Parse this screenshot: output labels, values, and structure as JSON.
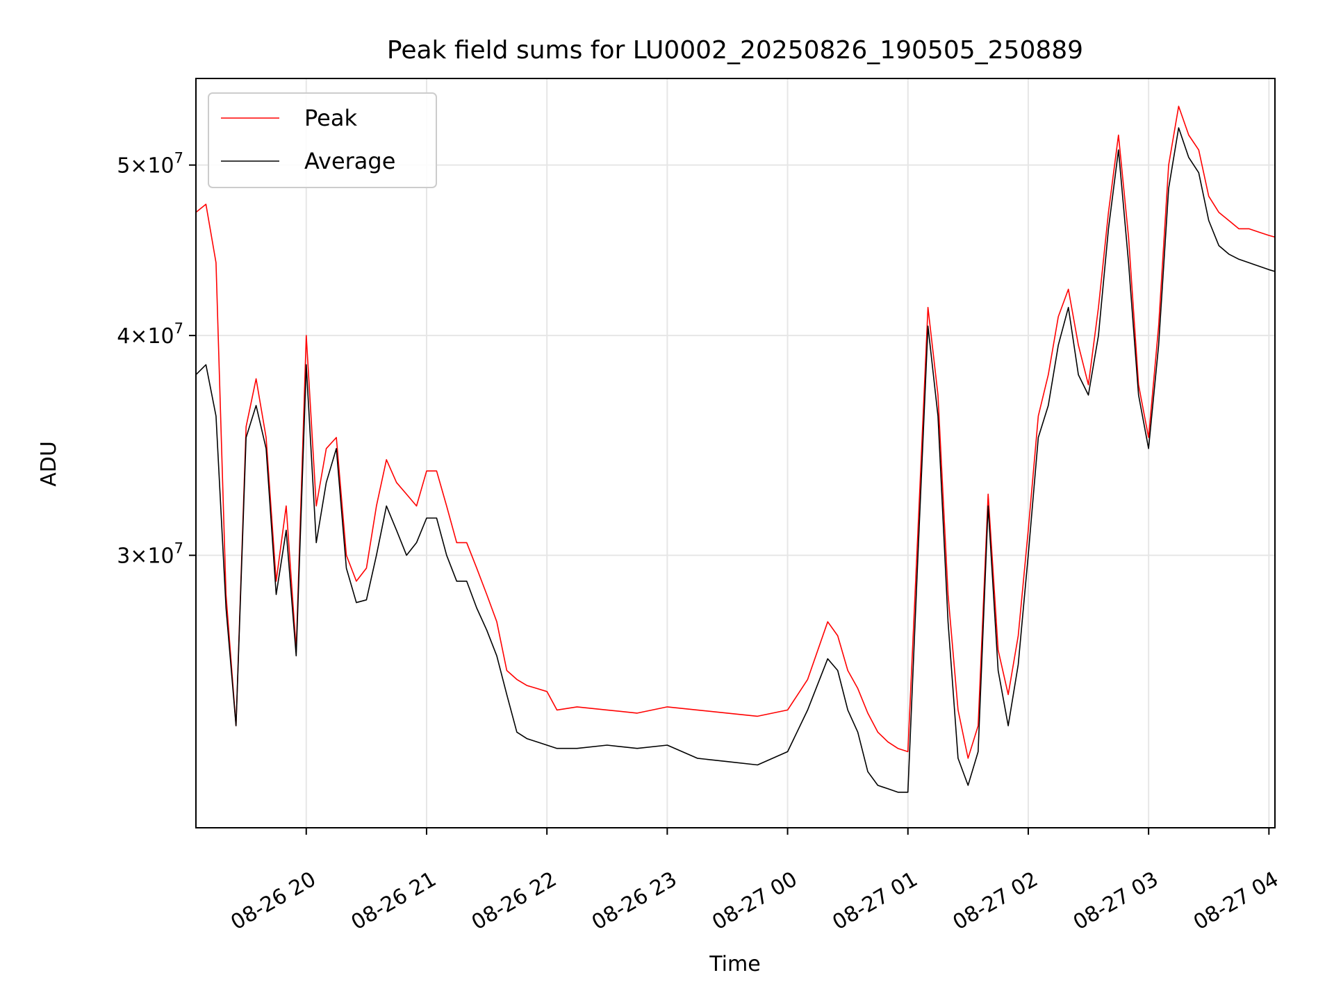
{
  "chart_data": {
    "type": "line",
    "title": "Peak field sums for LU0002_20250826_190505_250889",
    "xlabel": "Time",
    "ylabel": "ADU",
    "yscale": "log",
    "ylim": [
      21000000,
      56000000
    ],
    "xlim": [
      "2025-08-26 19:05",
      "2025-08-27 04:03"
    ],
    "grid": true,
    "legend_position": "top-left",
    "x_ticks": [
      {
        "t": "2025-08-26 20:00",
        "label": "08-26 20"
      },
      {
        "t": "2025-08-26 21:00",
        "label": "08-26 21"
      },
      {
        "t": "2025-08-26 22:00",
        "label": "08-26 22"
      },
      {
        "t": "2025-08-26 23:00",
        "label": "08-26 23"
      },
      {
        "t": "2025-08-27 00:00",
        "label": "08-27 00"
      },
      {
        "t": "2025-08-27 01:00",
        "label": "08-27 01"
      },
      {
        "t": "2025-08-27 02:00",
        "label": "08-27 02"
      },
      {
        "t": "2025-08-27 03:00",
        "label": "08-27 03"
      },
      {
        "t": "2025-08-27 04:00",
        "label": "08-27 04"
      }
    ],
    "y_ticks": [
      {
        "value": 30000000,
        "mantissa": "3",
        "exponent": "7"
      },
      {
        "value": 40000000,
        "mantissa": "4",
        "exponent": "7"
      },
      {
        "value": 50000000,
        "mantissa": "5",
        "exponent": "7"
      }
    ],
    "series": [
      {
        "name": "Peak",
        "color": "#ff0000",
        "x": [
          "2025-08-26 19:05",
          "2025-08-26 19:10",
          "2025-08-26 19:15",
          "2025-08-26 19:20",
          "2025-08-26 19:25",
          "2025-08-26 19:30",
          "2025-08-26 19:35",
          "2025-08-26 19:40",
          "2025-08-26 19:45",
          "2025-08-26 19:50",
          "2025-08-26 19:55",
          "2025-08-26 20:00",
          "2025-08-26 20:05",
          "2025-08-26 20:10",
          "2025-08-26 20:15",
          "2025-08-26 20:20",
          "2025-08-26 20:25",
          "2025-08-26 20:30",
          "2025-08-26 20:35",
          "2025-08-26 20:40",
          "2025-08-26 20:45",
          "2025-08-26 20:50",
          "2025-08-26 20:55",
          "2025-08-26 21:00",
          "2025-08-26 21:05",
          "2025-08-26 21:10",
          "2025-08-26 21:15",
          "2025-08-26 21:20",
          "2025-08-26 21:25",
          "2025-08-26 21:30",
          "2025-08-26 21:35",
          "2025-08-26 21:40",
          "2025-08-26 21:45",
          "2025-08-26 21:50",
          "2025-08-26 21:55",
          "2025-08-26 22:00",
          "2025-08-26 22:05",
          "2025-08-26 22:15",
          "2025-08-26 22:30",
          "2025-08-26 22:45",
          "2025-08-26 23:00",
          "2025-08-26 23:15",
          "2025-08-26 23:30",
          "2025-08-26 23:45",
          "2025-08-27 00:00",
          "2025-08-27 00:10",
          "2025-08-27 00:20",
          "2025-08-27 00:25",
          "2025-08-27 00:30",
          "2025-08-27 00:35",
          "2025-08-27 00:40",
          "2025-08-27 00:45",
          "2025-08-27 00:50",
          "2025-08-27 00:55",
          "2025-08-27 01:00",
          "2025-08-27 01:05",
          "2025-08-27 01:10",
          "2025-08-27 01:15",
          "2025-08-27 01:20",
          "2025-08-27 01:25",
          "2025-08-27 01:30",
          "2025-08-27 01:35",
          "2025-08-27 01:40",
          "2025-08-27 01:45",
          "2025-08-27 01:50",
          "2025-08-27 01:55",
          "2025-08-27 02:00",
          "2025-08-27 02:05",
          "2025-08-27 02:10",
          "2025-08-27 02:15",
          "2025-08-27 02:20",
          "2025-08-27 02:25",
          "2025-08-27 02:30",
          "2025-08-27 02:35",
          "2025-08-27 02:40",
          "2025-08-27 02:45",
          "2025-08-27 02:50",
          "2025-08-27 02:55",
          "2025-08-27 03:00",
          "2025-08-27 03:05",
          "2025-08-27 03:10",
          "2025-08-27 03:15",
          "2025-08-27 03:20",
          "2025-08-27 03:25",
          "2025-08-27 03:30",
          "2025-08-27 03:35",
          "2025-08-27 03:40",
          "2025-08-27 03:45",
          "2025-08-27 03:50",
          "2025-08-27 03:55",
          "2025-08-27 04:00",
          "2025-08-27 04:03"
        ],
        "values": [
          47000000,
          47500000,
          44000000,
          28500000,
          24000000,
          35500000,
          37800000,
          35000000,
          29000000,
          32000000,
          26500000,
          40000000,
          32000000,
          34500000,
          35000000,
          30000000,
          29000000,
          29500000,
          32000000,
          34000000,
          33000000,
          32500000,
          32000000,
          33500000,
          33500000,
          32000000,
          30500000,
          30500000,
          29500000,
          28500000,
          27500000,
          25800000,
          25500000,
          25300000,
          25200000,
          25100000,
          24500000,
          24600000,
          24500000,
          24400000,
          24600000,
          24500000,
          24400000,
          24300000,
          24500000,
          25500000,
          27500000,
          27000000,
          25800000,
          25200000,
          24400000,
          23800000,
          23500000,
          23300000,
          23200000,
          31000000,
          41500000,
          37000000,
          28500000,
          24500000,
          23000000,
          24000000,
          32500000,
          26500000,
          25000000,
          27000000,
          31000000,
          36000000,
          38000000,
          41000000,
          42500000,
          39500000,
          37500000,
          41500000,
          47000000,
          52000000,
          45500000,
          37500000,
          35000000,
          40500000,
          50000000,
          54000000,
          52000000,
          51000000,
          48000000,
          47000000,
          46500000,
          46000000,
          46000000,
          45800000,
          45600000,
          45500000
        ]
      },
      {
        "name": "Average",
        "color": "#000000",
        "x": [
          "2025-08-26 19:05",
          "2025-08-26 19:10",
          "2025-08-26 19:15",
          "2025-08-26 19:20",
          "2025-08-26 19:25",
          "2025-08-26 19:30",
          "2025-08-26 19:35",
          "2025-08-26 19:40",
          "2025-08-26 19:45",
          "2025-08-26 19:50",
          "2025-08-26 19:55",
          "2025-08-26 20:00",
          "2025-08-26 20:05",
          "2025-08-26 20:10",
          "2025-08-26 20:15",
          "2025-08-26 20:20",
          "2025-08-26 20:25",
          "2025-08-26 20:30",
          "2025-08-26 20:35",
          "2025-08-26 20:40",
          "2025-08-26 20:45",
          "2025-08-26 20:50",
          "2025-08-26 20:55",
          "2025-08-26 21:00",
          "2025-08-26 21:05",
          "2025-08-26 21:10",
          "2025-08-26 21:15",
          "2025-08-26 21:20",
          "2025-08-26 21:25",
          "2025-08-26 21:30",
          "2025-08-26 21:35",
          "2025-08-26 21:40",
          "2025-08-26 21:45",
          "2025-08-26 21:50",
          "2025-08-26 21:55",
          "2025-08-26 22:00",
          "2025-08-26 22:05",
          "2025-08-26 22:15",
          "2025-08-26 22:30",
          "2025-08-26 22:45",
          "2025-08-26 23:00",
          "2025-08-26 23:15",
          "2025-08-26 23:30",
          "2025-08-26 23:45",
          "2025-08-27 00:00",
          "2025-08-27 00:10",
          "2025-08-27 00:20",
          "2025-08-27 00:25",
          "2025-08-27 00:30",
          "2025-08-27 00:35",
          "2025-08-27 00:40",
          "2025-08-27 00:45",
          "2025-08-27 00:50",
          "2025-08-27 00:55",
          "2025-08-27 01:00",
          "2025-08-27 01:05",
          "2025-08-27 01:10",
          "2025-08-27 01:15",
          "2025-08-27 01:20",
          "2025-08-27 01:25",
          "2025-08-27 01:30",
          "2025-08-27 01:35",
          "2025-08-27 01:40",
          "2025-08-27 01:45",
          "2025-08-27 01:50",
          "2025-08-27 01:55",
          "2025-08-27 02:00",
          "2025-08-27 02:05",
          "2025-08-27 02:10",
          "2025-08-27 02:15",
          "2025-08-27 02:20",
          "2025-08-27 02:25",
          "2025-08-27 02:30",
          "2025-08-27 02:35",
          "2025-08-27 02:40",
          "2025-08-27 02:45",
          "2025-08-27 02:50",
          "2025-08-27 02:55",
          "2025-08-27 03:00",
          "2025-08-27 03:05",
          "2025-08-27 03:10",
          "2025-08-27 03:15",
          "2025-08-27 03:20",
          "2025-08-27 03:25",
          "2025-08-27 03:30",
          "2025-08-27 03:35",
          "2025-08-27 03:40",
          "2025-08-27 03:45",
          "2025-08-27 03:50",
          "2025-08-27 03:55",
          "2025-08-27 04:00",
          "2025-08-27 04:03"
        ],
        "values": [
          38000000,
          38500000,
          36000000,
          28000000,
          24000000,
          35000000,
          36500000,
          34500000,
          28500000,
          31000000,
          26300000,
          38500000,
          30500000,
          33000000,
          34500000,
          29500000,
          28200000,
          28300000,
          30000000,
          32000000,
          31000000,
          30000000,
          30500000,
          31500000,
          31500000,
          30000000,
          29000000,
          29000000,
          28000000,
          27200000,
          26300000,
          25000000,
          23800000,
          23600000,
          23500000,
          23400000,
          23300000,
          23300000,
          23400000,
          23300000,
          23400000,
          23000000,
          22900000,
          22800000,
          23200000,
          24500000,
          26200000,
          25800000,
          24500000,
          23800000,
          22600000,
          22200000,
          22100000,
          22000000,
          22000000,
          30000000,
          40500000,
          36000000,
          27500000,
          23000000,
          22200000,
          23200000,
          32000000,
          25800000,
          24000000,
          26000000,
          30000000,
          35000000,
          36500000,
          39500000,
          41500000,
          38000000,
          37000000,
          40000000,
          46000000,
          51000000,
          44000000,
          37000000,
          34500000,
          39500000,
          48500000,
          52500000,
          50500000,
          49500000,
          46500000,
          45000000,
          44500000,
          44200000,
          44000000,
          43800000,
          43600000,
          43500000
        ]
      }
    ]
  }
}
